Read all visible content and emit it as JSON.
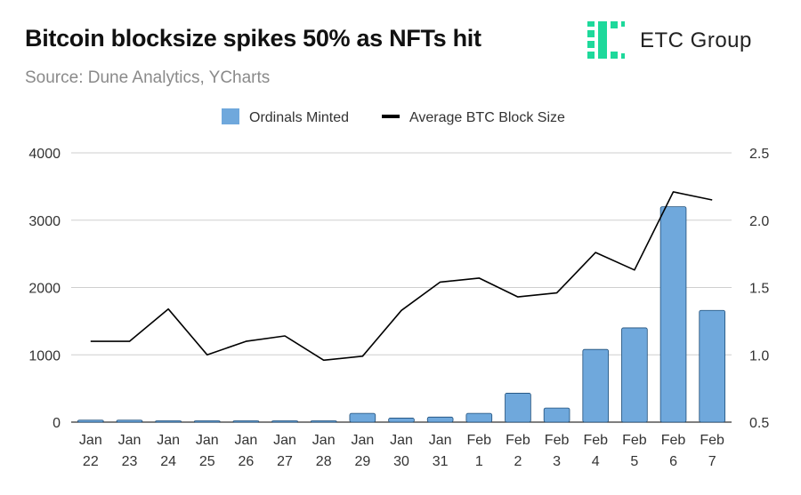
{
  "header": {
    "title": "Bitcoin blocksize spikes 50% as NFTs hit",
    "subtitle": "Source: Dune Analytics, YCharts",
    "logo_text": "ETC Group",
    "logo_color": "#1ed99b"
  },
  "chart_data": {
    "type": "bar",
    "title": "Bitcoin blocksize spikes 50% as NFTs hit",
    "subtitle": "Source: Dune Analytics, YCharts",
    "legend_position": "top-center",
    "grid": true,
    "categories": [
      [
        "Jan",
        "22"
      ],
      [
        "Jan",
        "23"
      ],
      [
        "Jan",
        "24"
      ],
      [
        "Jan",
        "25"
      ],
      [
        "Jan",
        "26"
      ],
      [
        "Jan",
        "27"
      ],
      [
        "Jan",
        "28"
      ],
      [
        "Jan",
        "29"
      ],
      [
        "Jan",
        "30"
      ],
      [
        "Jan",
        "31"
      ],
      [
        "Feb",
        "1"
      ],
      [
        "Feb",
        "2"
      ],
      [
        "Feb",
        "3"
      ],
      [
        "Feb",
        "4"
      ],
      [
        "Feb",
        "5"
      ],
      [
        "Feb",
        "6"
      ],
      [
        "Feb",
        "7"
      ]
    ],
    "series": [
      {
        "name": "Ordinals Minted",
        "type": "bar",
        "axis": "left",
        "color": "#6fa8dc",
        "values": [
          30,
          30,
          20,
          20,
          20,
          20,
          20,
          130,
          60,
          75,
          130,
          430,
          210,
          1080,
          1400,
          3200,
          1660
        ]
      },
      {
        "name": "Average BTC Block Size",
        "type": "line",
        "axis": "right",
        "color": "#000000",
        "values": [
          1.1,
          1.1,
          1.34,
          1.0,
          1.1,
          1.14,
          0.96,
          0.99,
          1.33,
          1.54,
          1.57,
          1.43,
          1.46,
          1.76,
          1.63,
          2.21,
          2.15
        ]
      }
    ],
    "y_left": {
      "min": 0,
      "max": 4000,
      "ticks": [
        "0",
        "1000",
        "2000",
        "3000",
        "4000"
      ]
    },
    "y_right": {
      "min": 0.5,
      "max": 2.5,
      "ticks": [
        "0.5",
        "1.0",
        "1.5",
        "2.0",
        "2.5"
      ]
    }
  }
}
